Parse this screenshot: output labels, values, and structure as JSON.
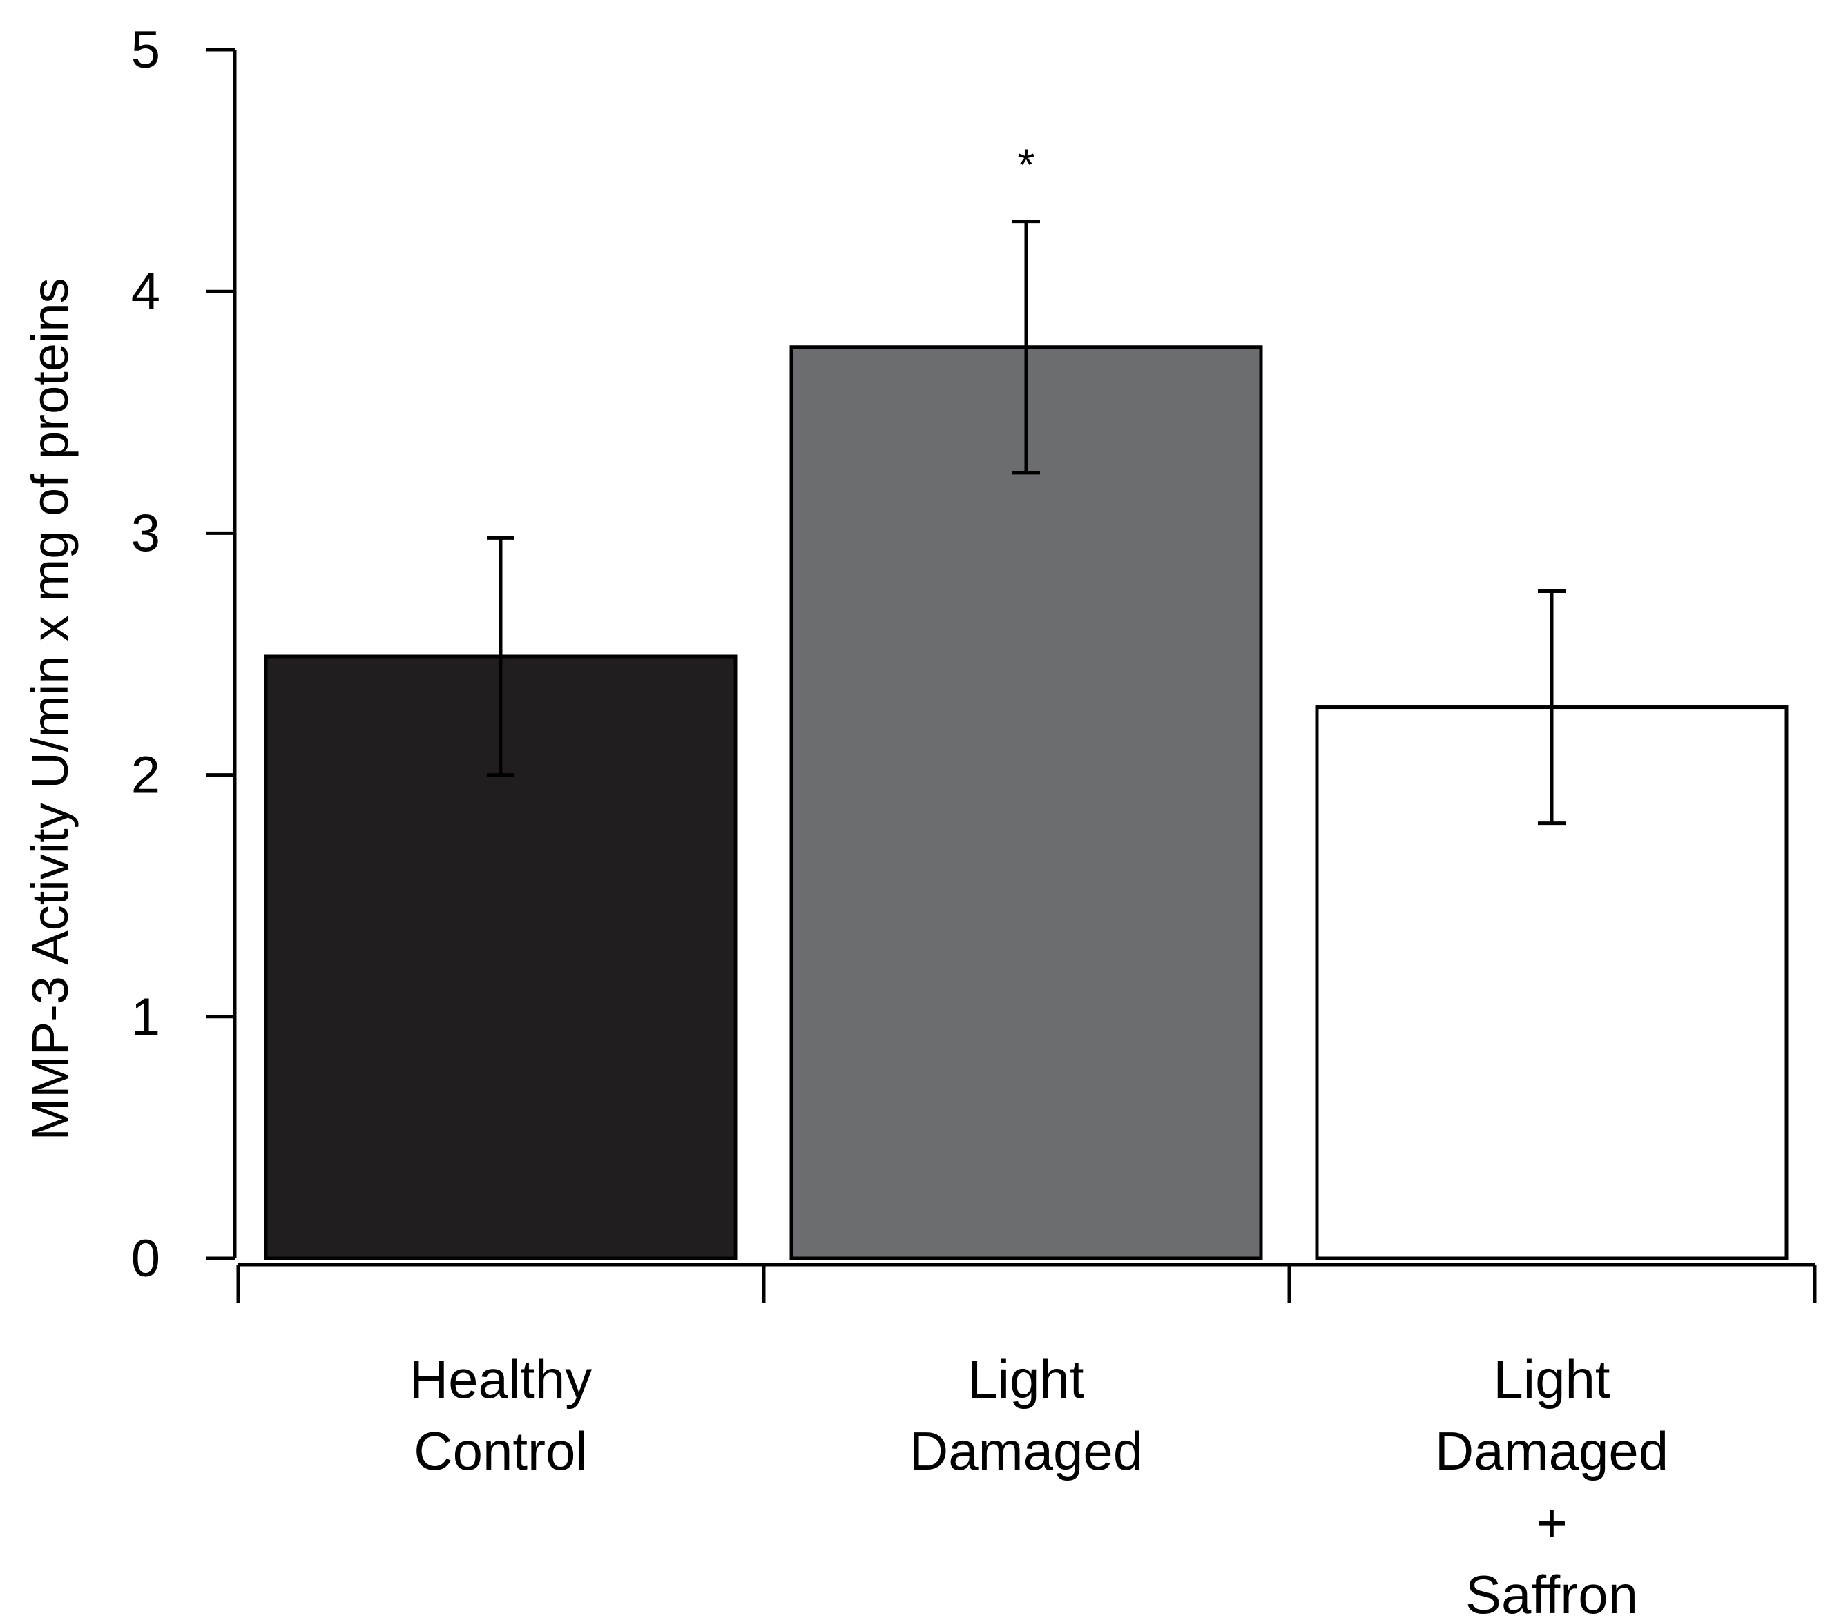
{
  "chart_data": {
    "type": "bar",
    "title": "",
    "xlabel": "",
    "ylabel": "MMP-3 Activity U/min x mg of proteins",
    "ylim": [
      0,
      5
    ],
    "yticks": [
      "0",
      "1",
      "2",
      "3",
      "4",
      "5"
    ],
    "grid": false,
    "categories": [
      [
        "Healthy",
        "Control"
      ],
      [
        "Light",
        "Damaged"
      ],
      [
        "Light",
        "Damaged",
        "+",
        "Saffron"
      ]
    ],
    "values": [
      2.49,
      3.77,
      2.28
    ],
    "error": [
      0.49,
      0.52,
      0.48
    ],
    "colors": [
      "#221e1f",
      "#6c6d70",
      "#ffffff"
    ],
    "significance": [
      "",
      "*",
      ""
    ]
  }
}
